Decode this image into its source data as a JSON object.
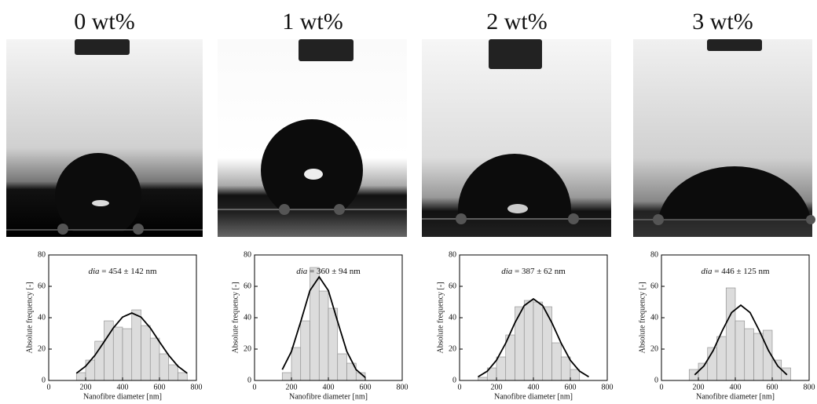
{
  "chart_data": [
    {
      "type": "histogram",
      "title": "0 wt%",
      "annotation_var": "dia",
      "annotation": "= 454 ± 142 nm",
      "xlabel": "Nanofibre diameter [nm]",
      "ylabel": "Absolute frequency [-]",
      "bins": [
        150,
        200,
        250,
        300,
        350,
        400,
        450,
        500,
        550,
        600,
        650,
        700,
        750
      ],
      "values": [
        5,
        13,
        25,
        38,
        34,
        33,
        45,
        35,
        27,
        17,
        10,
        5
      ],
      "color": "#dcdcdc",
      "fit": {
        "x": [
          150,
          200,
          250,
          300,
          350,
          400,
          450,
          500,
          550,
          600,
          650,
          700,
          750
        ],
        "values": [
          4.6,
          9.1,
          16,
          24.6,
          33.5,
          40.4,
          43,
          40.4,
          33.5,
          24.6,
          16,
          9.1,
          4.6
        ]
      },
      "xlim": [
        0,
        800
      ],
      "ylim": [
        0,
        80
      ],
      "xticks": [
        0,
        200,
        400,
        600,
        800
      ],
      "yticks": [
        0,
        20,
        40,
        60,
        80
      ]
    },
    {
      "type": "histogram",
      "title": "1 wt%",
      "annotation_var": "dia",
      "annotation": "= 360 ± 94 nm",
      "xlabel": "Nanofibre diameter [nm]",
      "ylabel": "Absolute frequency [-]",
      "bins": [
        150,
        200,
        250,
        300,
        350,
        400,
        450,
        500,
        550,
        600
      ],
      "values": [
        5,
        21,
        38,
        72,
        57,
        46,
        17,
        11,
        5
      ],
      "color": "#dcdcdc",
      "fit": {
        "x": [
          150,
          200,
          250,
          300,
          350,
          400,
          450,
          500,
          550,
          600
        ],
        "values": [
          6.9,
          18.5,
          37.5,
          57.3,
          66,
          57.3,
          37.5,
          18.5,
          6.9,
          1.9
        ]
      },
      "xlim": [
        0,
        800
      ],
      "ylim": [
        0,
        80
      ],
      "xticks": [
        0,
        200,
        400,
        600,
        800
      ],
      "yticks": [
        0,
        20,
        40,
        60,
        80
      ]
    },
    {
      "type": "histogram",
      "title": "2 wt%",
      "annotation_var": "dia",
      "annotation": "= 387 ± 62 nm",
      "xlabel": "Nanofibre diameter [nm]",
      "ylabel": "Absolute frequency [-]",
      "bins": [
        100,
        150,
        200,
        250,
        300,
        350,
        400,
        450,
        500,
        550,
        600,
        650
      ],
      "values": [
        2,
        8,
        15,
        29,
        47,
        51,
        50,
        47,
        24,
        15,
        7
      ],
      "color": "#dcdcdc",
      "fit": {
        "x": [
          100,
          150,
          200,
          250,
          300,
          350,
          400,
          450,
          500,
          550,
          600,
          650,
          700
        ],
        "values": [
          2.3,
          5.9,
          12.9,
          23.8,
          36.8,
          47.7,
          52,
          47.7,
          36.8,
          23.8,
          12.9,
          5.9,
          2.3
        ]
      },
      "xlim": [
        0,
        800
      ],
      "ylim": [
        0,
        80
      ],
      "xticks": [
        0,
        200,
        400,
        600,
        800
      ],
      "yticks": [
        0,
        20,
        40,
        60,
        80
      ]
    },
    {
      "type": "histogram",
      "title": "3 wt%",
      "annotation_var": "dia",
      "annotation": "= 446 ± 125 nm",
      "xlabel": "Nanofibre diameter [nm]",
      "ylabel": "Absolute frequency [-]",
      "bins": [
        150,
        200,
        250,
        300,
        350,
        400,
        450,
        500,
        550,
        600,
        650,
        700
      ],
      "values": [
        7,
        11,
        21,
        28,
        59,
        38,
        33,
        30,
        32,
        13,
        8
      ],
      "color": "#dcdcdc",
      "fit": {
        "x": [
          180,
          230,
          280,
          330,
          380,
          430,
          480,
          530,
          580,
          630,
          680
        ],
        "values": [
          3.6,
          9.2,
          19,
          31.8,
          43.3,
          48,
          43.3,
          31.8,
          19,
          9.2,
          3.6
        ]
      },
      "xlim": [
        0,
        800
      ],
      "ylim": [
        0,
        80
      ],
      "xticks": [
        0,
        200,
        400,
        600,
        800
      ],
      "yticks": [
        0,
        20,
        40,
        60,
        80
      ]
    }
  ]
}
